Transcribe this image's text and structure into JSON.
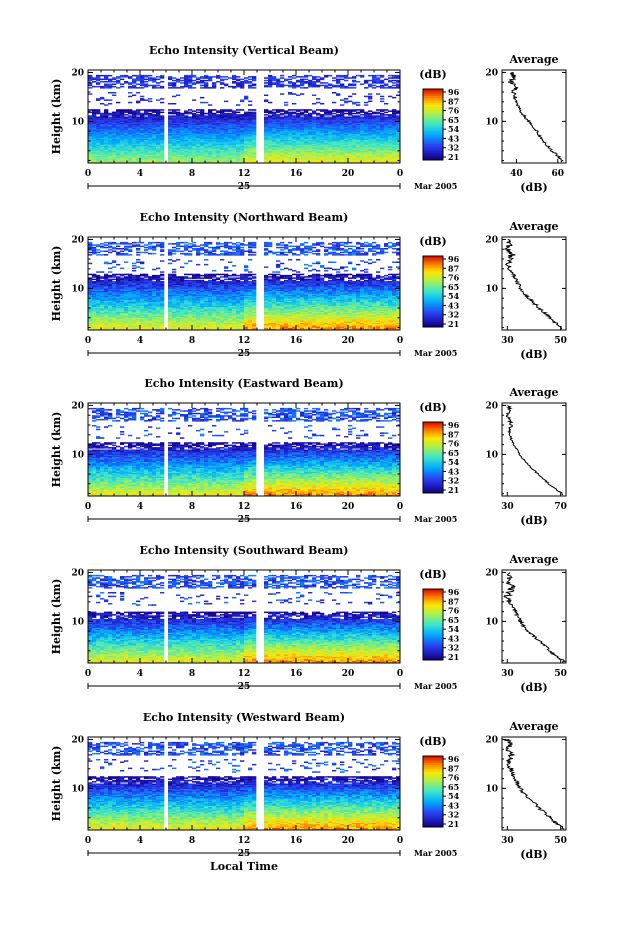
{
  "chart_data": [
    {
      "type": "heatmap",
      "title": "Echo Intensity (Vertical Beam)",
      "ylabel": "Height (km)",
      "yticks": [
        "20",
        "10"
      ],
      "ylim": [
        1.5,
        20.5
      ],
      "xticks": [
        "0",
        "4",
        "8",
        "12",
        "16",
        "20",
        "0"
      ],
      "xlim": [
        0,
        24
      ],
      "day_label": "25",
      "month_label": "Mar 2005",
      "gaps_hours": [
        [
          5.9,
          6.1
        ],
        [
          12.8,
          13.5
        ]
      ],
      "colorbar": {
        "unit": "(dB)",
        "ticks": [
          "96",
          "87",
          "76",
          "65",
          "54",
          "43",
          "32",
          "21"
        ]
      },
      "levels": {
        "top": 96,
        "bottom": 21,
        "vmax_low": 60,
        "vmax_high": 90,
        "cutoff_km": 12.5
      },
      "average": {
        "title": "Average",
        "xlabel": "(dB)",
        "xticks": [
          "40",
          "60"
        ],
        "xlim": [
          33,
          64
        ],
        "yticks": [
          "20",
          "10"
        ],
        "height_km": [
          2,
          3,
          4,
          5,
          6,
          7,
          8,
          9,
          10,
          11,
          12,
          13,
          14,
          15,
          16,
          17,
          18,
          19,
          20
        ],
        "db": [
          62,
          60,
          57,
          55,
          53,
          51,
          50,
          48,
          46,
          44,
          42,
          41,
          40,
          39,
          38,
          40,
          37,
          39,
          38
        ]
      }
    },
    {
      "type": "heatmap",
      "title": "Echo Intensity (Northward Beam)",
      "ylabel": "Height (km)",
      "yticks": [
        "20",
        "10"
      ],
      "ylim": [
        1.5,
        20.5
      ],
      "xticks": [
        "0",
        "4",
        "8",
        "12",
        "16",
        "20",
        "0"
      ],
      "xlim": [
        0,
        24
      ],
      "day_label": "25",
      "month_label": "Mar 2005",
      "gaps_hours": [
        [
          5.9,
          6.1
        ],
        [
          12.8,
          13.5
        ]
      ],
      "colorbar": {
        "unit": "(dB)",
        "ticks": [
          "96",
          "87",
          "76",
          "65",
          "54",
          "43",
          "32",
          "21"
        ]
      },
      "levels": {
        "top": 76,
        "bottom": 21,
        "vmax_low": 55,
        "vmax_high": 80,
        "cutoff_km": 13
      },
      "average": {
        "title": "Average",
        "xlabel": "(dB)",
        "xticks": [
          "30",
          "50"
        ],
        "xlim": [
          28,
          52
        ],
        "yticks": [
          "20",
          "10"
        ],
        "height_km": [
          2,
          3,
          4,
          5,
          6,
          7,
          8,
          9,
          10,
          11,
          12,
          13,
          14,
          15,
          16,
          17,
          18,
          19,
          20
        ],
        "db": [
          50,
          48,
          46,
          44,
          42,
          40,
          38,
          36,
          35,
          34,
          33,
          32,
          31,
          30,
          31,
          32,
          30,
          31,
          30
        ]
      }
    },
    {
      "type": "heatmap",
      "title": "Echo Intensity (Eastward Beam)",
      "ylabel": "Height (km)",
      "yticks": [
        "20",
        "10"
      ],
      "ylim": [
        1.5,
        20.5
      ],
      "xticks": [
        "0",
        "4",
        "8",
        "12",
        "16",
        "20",
        "0"
      ],
      "xlim": [
        0,
        24
      ],
      "day_label": "25",
      "month_label": "Mar 2005",
      "gaps_hours": [
        [
          5.9,
          6.1
        ],
        [
          12.8,
          13.5
        ]
      ],
      "colorbar": {
        "unit": "(dB)",
        "ticks": [
          "96",
          "87",
          "76",
          "65",
          "54",
          "43",
          "32",
          "21"
        ]
      },
      "levels": {
        "top": 76,
        "bottom": 21,
        "vmax_low": 55,
        "vmax_high": 80,
        "cutoff_km": 12.5
      },
      "average": {
        "title": "Average",
        "xlabel": "(dB)",
        "xticks": [
          "30",
          "70"
        ],
        "xlim": [
          26,
          74
        ],
        "yticks": [
          "20",
          "10"
        ],
        "height_km": [
          2,
          3,
          4,
          5,
          6,
          7,
          8,
          9,
          10,
          11,
          12,
          13,
          14,
          15,
          16,
          17,
          18,
          19,
          20
        ],
        "db": [
          71,
          66,
          61,
          57,
          53,
          49,
          45,
          42,
          39,
          37,
          35,
          33,
          32,
          31,
          33,
          32,
          30,
          32,
          31
        ]
      }
    },
    {
      "type": "heatmap",
      "title": "Echo Intensity (Southward Beam)",
      "ylabel": "Height (km)",
      "yticks": [
        "20",
        "10"
      ],
      "ylim": [
        1.5,
        20.5
      ],
      "xticks": [
        "0",
        "4",
        "8",
        "12",
        "16",
        "20",
        "0"
      ],
      "xlim": [
        0,
        24
      ],
      "day_label": "25",
      "month_label": "Mar 2005",
      "gaps_hours": [
        [
          5.9,
          6.1
        ],
        [
          12.8,
          13.5
        ]
      ],
      "colorbar": {
        "unit": "(dB)",
        "ticks": [
          "96",
          "87",
          "76",
          "65",
          "54",
          "43",
          "32",
          "21"
        ]
      },
      "levels": {
        "top": 76,
        "bottom": 21,
        "vmax_low": 55,
        "vmax_high": 80,
        "cutoff_km": 12
      },
      "average": {
        "title": "Average",
        "xlabel": "(dB)",
        "xticks": [
          "30",
          "50"
        ],
        "xlim": [
          28,
          52
        ],
        "yticks": [
          "20",
          "10"
        ],
        "height_km": [
          2,
          3,
          4,
          5,
          6,
          7,
          8,
          9,
          10,
          11,
          12,
          13,
          14,
          15,
          16,
          17,
          18,
          19,
          20
        ],
        "db": [
          51,
          48,
          46,
          44,
          42,
          40,
          38,
          36,
          35,
          34,
          33,
          32,
          31,
          30,
          31,
          32,
          30,
          31,
          30
        ]
      }
    },
    {
      "type": "heatmap",
      "title": "Echo Intensity (Westward Beam)",
      "ylabel": "Height (km)",
      "yticks": [
        "20",
        "10"
      ],
      "ylim": [
        1.5,
        20.5
      ],
      "xticks": [
        "0",
        "4",
        "8",
        "12",
        "16",
        "20",
        "0"
      ],
      "xlim": [
        0,
        24
      ],
      "day_label": "25",
      "month_label": "Mar 2005",
      "xlabel": "Local Time",
      "gaps_hours": [
        [
          5.9,
          6.1
        ],
        [
          12.8,
          13.5
        ]
      ],
      "colorbar": {
        "unit": "(dB)",
        "ticks": [
          "96",
          "87",
          "76",
          "65",
          "54",
          "43",
          "32",
          "21"
        ]
      },
      "levels": {
        "top": 76,
        "bottom": 21,
        "vmax_low": 55,
        "vmax_high": 80,
        "cutoff_km": 12.5
      },
      "average": {
        "title": "Average",
        "xlabel": "(dB)",
        "xticks": [
          "30",
          "50"
        ],
        "xlim": [
          28,
          52
        ],
        "yticks": [
          "20",
          "10"
        ],
        "height_km": [
          2,
          3,
          4,
          5,
          6,
          7,
          8,
          9,
          10,
          11,
          12,
          13,
          14,
          15,
          16,
          17,
          18,
          19,
          20
        ],
        "db": [
          51,
          48,
          46,
          44,
          42,
          40,
          38,
          36,
          35,
          34,
          33,
          32,
          31,
          30,
          31,
          32,
          30,
          31,
          30
        ]
      }
    }
  ]
}
